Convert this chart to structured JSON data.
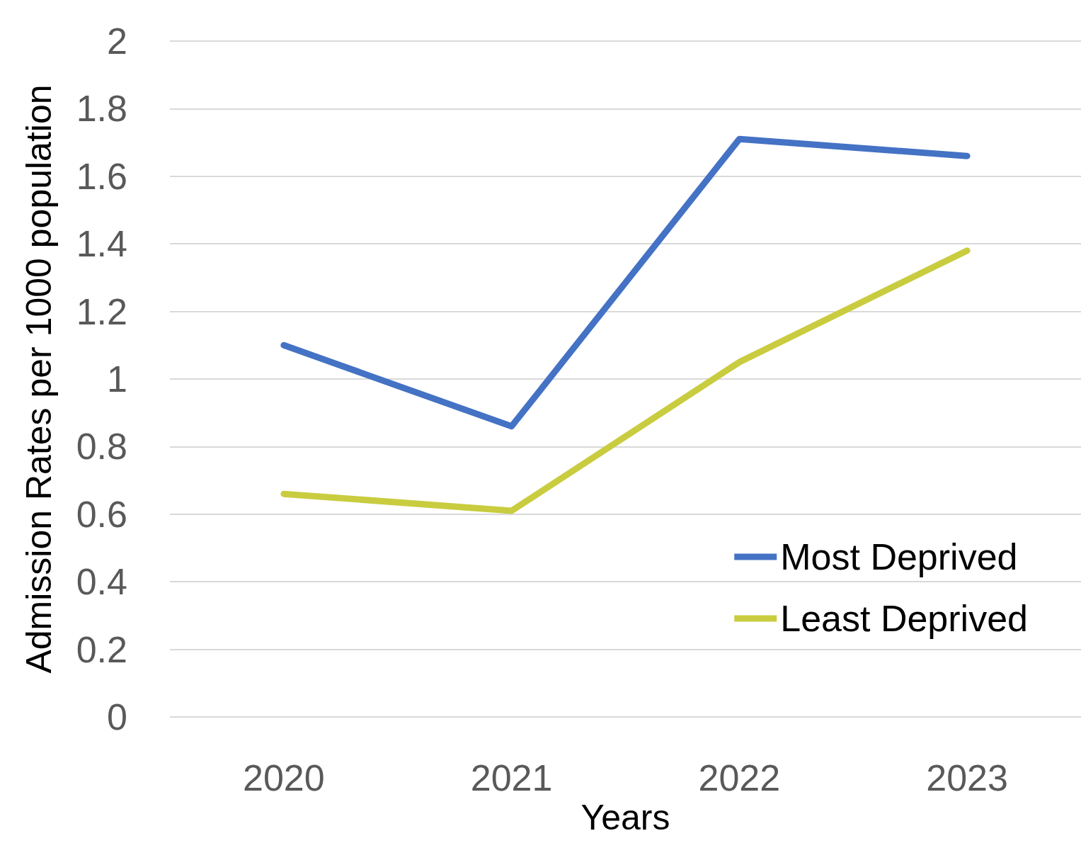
{
  "chart_data": {
    "type": "line",
    "xlabel": "Years",
    "ylabel": "Admission Rates per 1000 population",
    "categories": [
      "2020",
      "2021",
      "2022",
      "2023"
    ],
    "series": [
      {
        "name": "Most Deprived",
        "color": "#4472c4",
        "values": [
          1.1,
          0.86,
          1.71,
          1.66
        ]
      },
      {
        "name": "Least Deprived",
        "color": "#c9cc3f",
        "values": [
          0.66,
          0.61,
          1.05,
          1.38
        ]
      }
    ],
    "ylim": [
      0,
      2
    ],
    "yticks": [
      0,
      0.2,
      0.4,
      0.6,
      0.8,
      1,
      1.2,
      1.4,
      1.6,
      1.8,
      2
    ],
    "grid": "y",
    "legend": "bottom right",
    "marker": "none",
    "line_style": "solid"
  }
}
